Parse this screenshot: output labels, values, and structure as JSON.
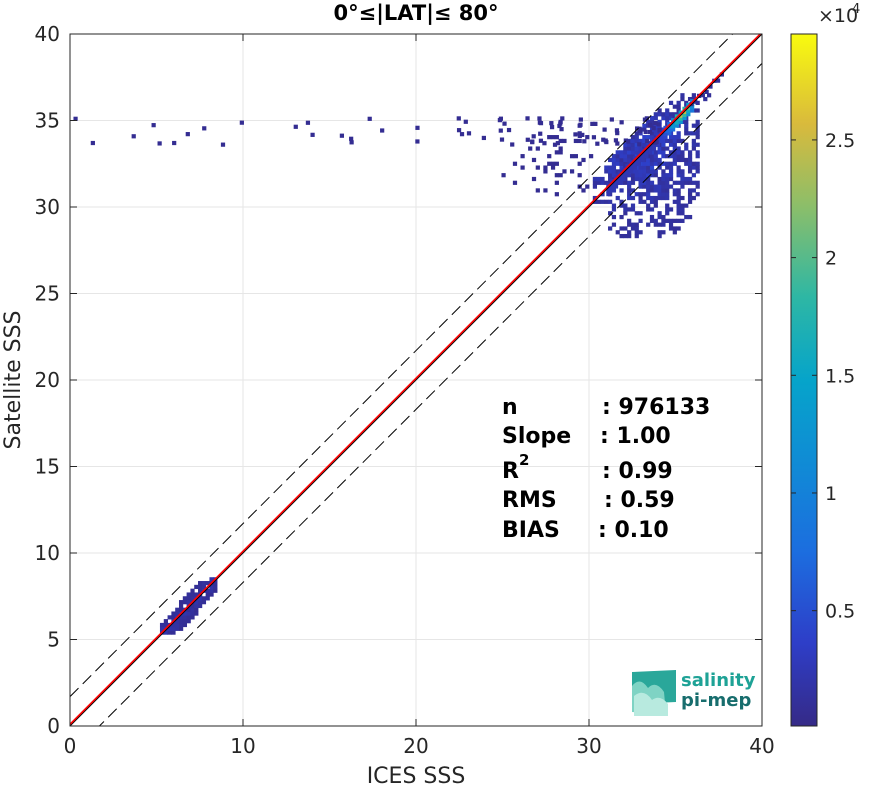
{
  "chart_data": {
    "type": "heatmap",
    "title": "0°≤|LAT|≤ 80°",
    "xlabel": "ICES SSS",
    "ylabel": "Satellite SSS",
    "xlim": [
      0,
      40
    ],
    "ylim": [
      0,
      40
    ],
    "xticks": [
      "0",
      "10",
      "20",
      "30",
      "40"
    ],
    "yticks": [
      "0",
      "5",
      "10",
      "15",
      "20",
      "25",
      "30",
      "35",
      "40"
    ],
    "grid": true,
    "reference_lines": [
      {
        "name": "identity",
        "slope": 1.0,
        "intercept": 0.0,
        "style": "solid",
        "color": "#000000"
      },
      {
        "name": "regression",
        "slope": 1.0,
        "intercept": 0.1,
        "style": "solid",
        "color": "#ff0000"
      },
      {
        "name": "upper",
        "slope": 1.0,
        "intercept": 1.7,
        "style": "dashed",
        "color": "#000000"
      },
      {
        "name": "lower",
        "slope": 1.0,
        "intercept": -1.7,
        "style": "dashed",
        "color": "#000000"
      }
    ],
    "clusters": [
      {
        "name": "low-salinity",
        "x_range": [
          5.2,
          8.3
        ],
        "y_range": [
          5.3,
          8.5
        ],
        "peak": [
          7.0,
          7.0
        ],
        "density": "low"
      },
      {
        "name": "open-ocean",
        "x_range": [
          22.5,
          37.5
        ],
        "y_range": [
          28.0,
          36.5
        ],
        "peak": [
          35.3,
          35.2
        ],
        "density": "high"
      },
      {
        "name": "high-y-tail",
        "x_range": [
          2.0,
          34.0
        ],
        "y_range": [
          33.5,
          35.4
        ],
        "density": "sparse"
      }
    ],
    "colorbar": {
      "ticks": [
        "0.5",
        "1",
        "1.5",
        "2",
        "2.5"
      ],
      "tick_values": [
        0.5,
        1,
        1.5,
        2,
        2.5
      ],
      "range": [
        0.01,
        2.95
      ],
      "multiplier": "×10",
      "exponent": "4",
      "colormap": "parula"
    },
    "stats": [
      {
        "key": "n",
        "value": ": 976133"
      },
      {
        "key": "Slope",
        "value": ": 1.00"
      },
      {
        "key": "R",
        "sup": "2",
        "value": ": 0.99"
      },
      {
        "key": "RMS",
        "value": ": 0.59"
      },
      {
        "key": "BIAS",
        "value": ": 0.10"
      }
    ]
  },
  "logo": {
    "line1": "salinity",
    "line2": "pi-mep"
  }
}
